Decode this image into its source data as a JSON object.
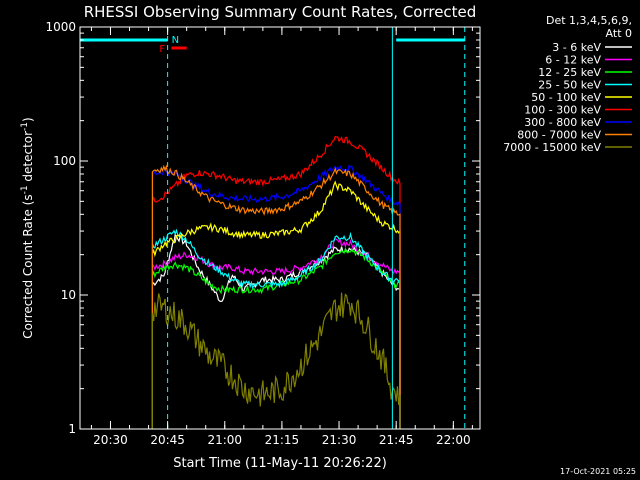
{
  "chart_data": {
    "type": "line",
    "title": "RHESSI Observing Summary Count Rates, Corrected",
    "xlabel": "Start Time (11-May-11 20:26:22)",
    "ylabel_main": "Corrected Count Rate (s",
    "ylabel_sup1": "-1",
    "ylabel_mid": " detector",
    "ylabel_sup2": "-1",
    "ylabel_end": ")",
    "y_scale": "log",
    "ylim": [
      1,
      1000
    ],
    "xlim": [
      "20:22",
      "22:07"
    ],
    "x_ticks": [
      "20:30",
      "20:45",
      "21:00",
      "21:15",
      "21:30",
      "21:45",
      "22:00"
    ],
    "y_ticks": [
      "1",
      "10",
      "100",
      "1000"
    ],
    "timestamp": "17-Oct-2021 05:25",
    "legend_header": [
      "Det 1,3,4,5,6,9,",
      "Att 0"
    ],
    "legend_position": "right",
    "night_markers": [
      {
        "label": "N",
        "color": "#00ffff",
        "time": "20:45"
      }
    ],
    "flare_markers": [
      {
        "label": "F",
        "color": "#ff0000",
        "start": "20:46",
        "end": "20:50"
      }
    ],
    "coverage_lines": [
      {
        "start": "20:22",
        "end": "20:45",
        "level": 800
      },
      {
        "start": "21:45",
        "end": "22:03",
        "level": 800
      }
    ],
    "boundaries_solid": [
      "20:22",
      "21:44"
    ],
    "boundaries_dashed": [
      "20:45",
      "22:03"
    ],
    "series": [
      {
        "name": "3 - 6 keV",
        "color": "#ffffff",
        "x": [
          "20:41",
          "20:44",
          "20:47",
          "20:50",
          "20:53",
          "20:56",
          "20:59",
          "21:02",
          "21:05",
          "21:10",
          "21:15",
          "21:20",
          "21:25",
          "21:29",
          "21:33",
          "21:37",
          "21:41",
          "21:44",
          "21:46"
        ],
        "y": [
          12,
          14,
          28,
          24,
          16,
          12,
          9,
          14,
          11,
          13,
          13,
          15,
          18,
          22,
          22,
          20,
          15,
          12,
          11
        ]
      },
      {
        "name": "6 - 12 keV",
        "color": "#ff00ff",
        "x": [
          "20:41",
          "20:44",
          "20:47",
          "20:50",
          "20:53",
          "20:56",
          "20:59",
          "21:02",
          "21:05",
          "21:10",
          "21:15",
          "21:20",
          "21:25",
          "21:29",
          "21:33",
          "21:37",
          "21:41",
          "21:44",
          "21:46"
        ],
        "y": [
          16,
          17,
          19,
          20,
          19,
          17,
          16,
          16,
          15,
          15,
          15,
          16,
          19,
          25,
          24,
          20,
          17,
          15,
          15
        ]
      },
      {
        "name": "12 - 25 keV",
        "color": "#00ff00",
        "x": [
          "20:41",
          "20:44",
          "20:47",
          "20:50",
          "20:53",
          "20:56",
          "20:59",
          "21:02",
          "21:05",
          "21:10",
          "21:15",
          "21:20",
          "21:25",
          "21:29",
          "21:33",
          "21:37",
          "21:41",
          "21:44",
          "21:46"
        ],
        "y": [
          14,
          16,
          17,
          16,
          14,
          12,
          11,
          11,
          11,
          11,
          12,
          13,
          16,
          21,
          22,
          19,
          15,
          12,
          12
        ]
      },
      {
        "name": "25 - 50 keV",
        "color": "#00ffff",
        "x": [
          "20:41",
          "20:44",
          "20:47",
          "20:50",
          "20:53",
          "20:56",
          "20:59",
          "21:02",
          "21:05",
          "21:10",
          "21:15",
          "21:20",
          "21:25",
          "21:29",
          "21:33",
          "21:37",
          "21:41",
          "21:44",
          "21:46"
        ],
        "y": [
          23,
          26,
          30,
          26,
          20,
          17,
          15,
          13,
          12,
          12,
          12,
          14,
          18,
          27,
          27,
          20,
          15,
          13,
          13
        ]
      },
      {
        "name": "50 - 100 keV",
        "color": "#ffff00",
        "x": [
          "20:41",
          "20:44",
          "20:47",
          "20:50",
          "20:53",
          "20:56",
          "20:59",
          "21:02",
          "21:05",
          "21:10",
          "21:15",
          "21:20",
          "21:25",
          "21:29",
          "21:33",
          "21:37",
          "21:41",
          "21:44",
          "21:46"
        ],
        "y": [
          20,
          24,
          26,
          29,
          31,
          32,
          31,
          29,
          28,
          28,
          29,
          31,
          42,
          66,
          60,
          45,
          35,
          32,
          30
        ]
      },
      {
        "name": "100 - 300 keV",
        "color": "#ff0000",
        "x": [
          "20:41",
          "20:44",
          "20:47",
          "20:50",
          "20:53",
          "20:56",
          "20:59",
          "21:02",
          "21:05",
          "21:10",
          "21:15",
          "21:20",
          "21:25",
          "21:29",
          "21:33",
          "21:37",
          "21:41",
          "21:44",
          "21:46"
        ],
        "y": [
          50,
          55,
          65,
          78,
          82,
          80,
          77,
          72,
          70,
          70,
          73,
          80,
          110,
          150,
          140,
          115,
          90,
          75,
          68
        ]
      },
      {
        "name": "300 - 800 keV",
        "color": "#0000ff",
        "x": [
          "20:41",
          "20:44",
          "20:47",
          "20:50",
          "20:53",
          "20:56",
          "20:59",
          "21:02",
          "21:05",
          "21:10",
          "21:15",
          "21:20",
          "21:25",
          "21:29",
          "21:33",
          "21:37",
          "21:41",
          "21:44",
          "21:46"
        ],
        "y": [
          80,
          84,
          80,
          72,
          64,
          58,
          55,
          53,
          52,
          52,
          54,
          60,
          75,
          90,
          88,
          72,
          58,
          50,
          48
        ]
      },
      {
        "name": "800 - 7000 keV",
        "color": "#ff8000",
        "x": [
          "20:41",
          "20:44",
          "20:47",
          "20:50",
          "20:53",
          "20:56",
          "20:59",
          "21:02",
          "21:05",
          "21:10",
          "21:15",
          "21:20",
          "21:25",
          "21:29",
          "21:33",
          "21:37",
          "21:41",
          "21:44",
          "21:46"
        ],
        "y": [
          85,
          88,
          82,
          70,
          60,
          52,
          48,
          45,
          43,
          42,
          44,
          50,
          65,
          83,
          80,
          62,
          48,
          42,
          40
        ]
      },
      {
        "name": "7000 - 15000 keV",
        "color": "#808000",
        "x": [
          "20:41",
          "20:44",
          "20:47",
          "20:50",
          "20:53",
          "20:56",
          "20:59",
          "21:02",
          "21:05",
          "21:10",
          "21:15",
          "21:20",
          "21:25",
          "21:29",
          "21:33",
          "21:37",
          "21:41",
          "21:44",
          "21:46"
        ],
        "y": [
          8,
          8,
          7,
          6,
          4.5,
          3.5,
          3,
          2.5,
          2,
          1.8,
          2,
          3,
          5,
          8,
          9,
          6,
          3.5,
          2,
          1.8
        ]
      }
    ]
  }
}
